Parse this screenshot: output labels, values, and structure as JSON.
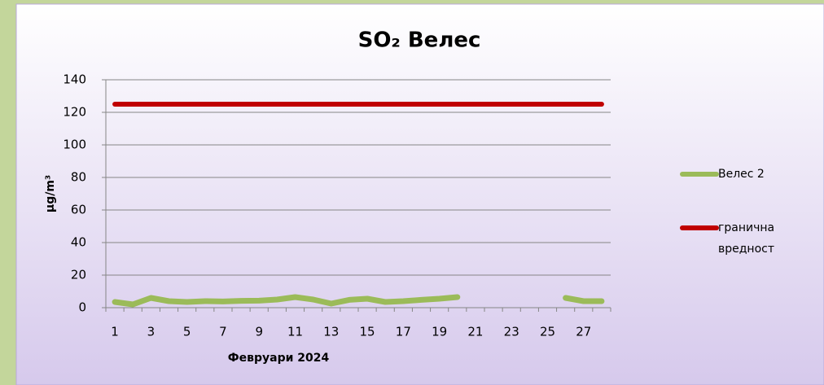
{
  "chart_data": {
    "type": "line",
    "title": "SO₂ Велес",
    "x_label": "Февруари 2024",
    "y_label": "μg/m³",
    "categories": [
      1,
      null,
      3,
      null,
      5,
      null,
      7,
      null,
      9,
      null,
      11,
      null,
      13,
      null,
      15,
      null,
      17,
      null,
      19,
      null,
      21,
      null,
      23,
      null,
      25,
      null,
      27,
      null
    ],
    "series": [
      {
        "name": "Велес 2",
        "color": "#9bbb59",
        "values": [
          3.5,
          2,
          6,
          4,
          3.5,
          4,
          3.8,
          4.2,
          4.3,
          5,
          6.5,
          5,
          2.5,
          4.8,
          5.5,
          3.5,
          4,
          4.8,
          5.5,
          6.5,
          null,
          null,
          null,
          null,
          null,
          6,
          4,
          4
        ]
      },
      {
        "name": "гранична вредност",
        "color": "#c00000",
        "values": [
          125,
          125,
          125,
          125,
          125,
          125,
          125,
          125,
          125,
          125,
          125,
          125,
          125,
          125,
          125,
          125,
          125,
          125,
          125,
          125,
          125,
          125,
          125,
          125,
          125,
          125,
          125,
          125
        ]
      }
    ],
    "ylim": [
      0,
      140
    ],
    "yticks": [
      0,
      20,
      40,
      60,
      80,
      100,
      120,
      140
    ],
    "grid": true,
    "legend": "right"
  }
}
